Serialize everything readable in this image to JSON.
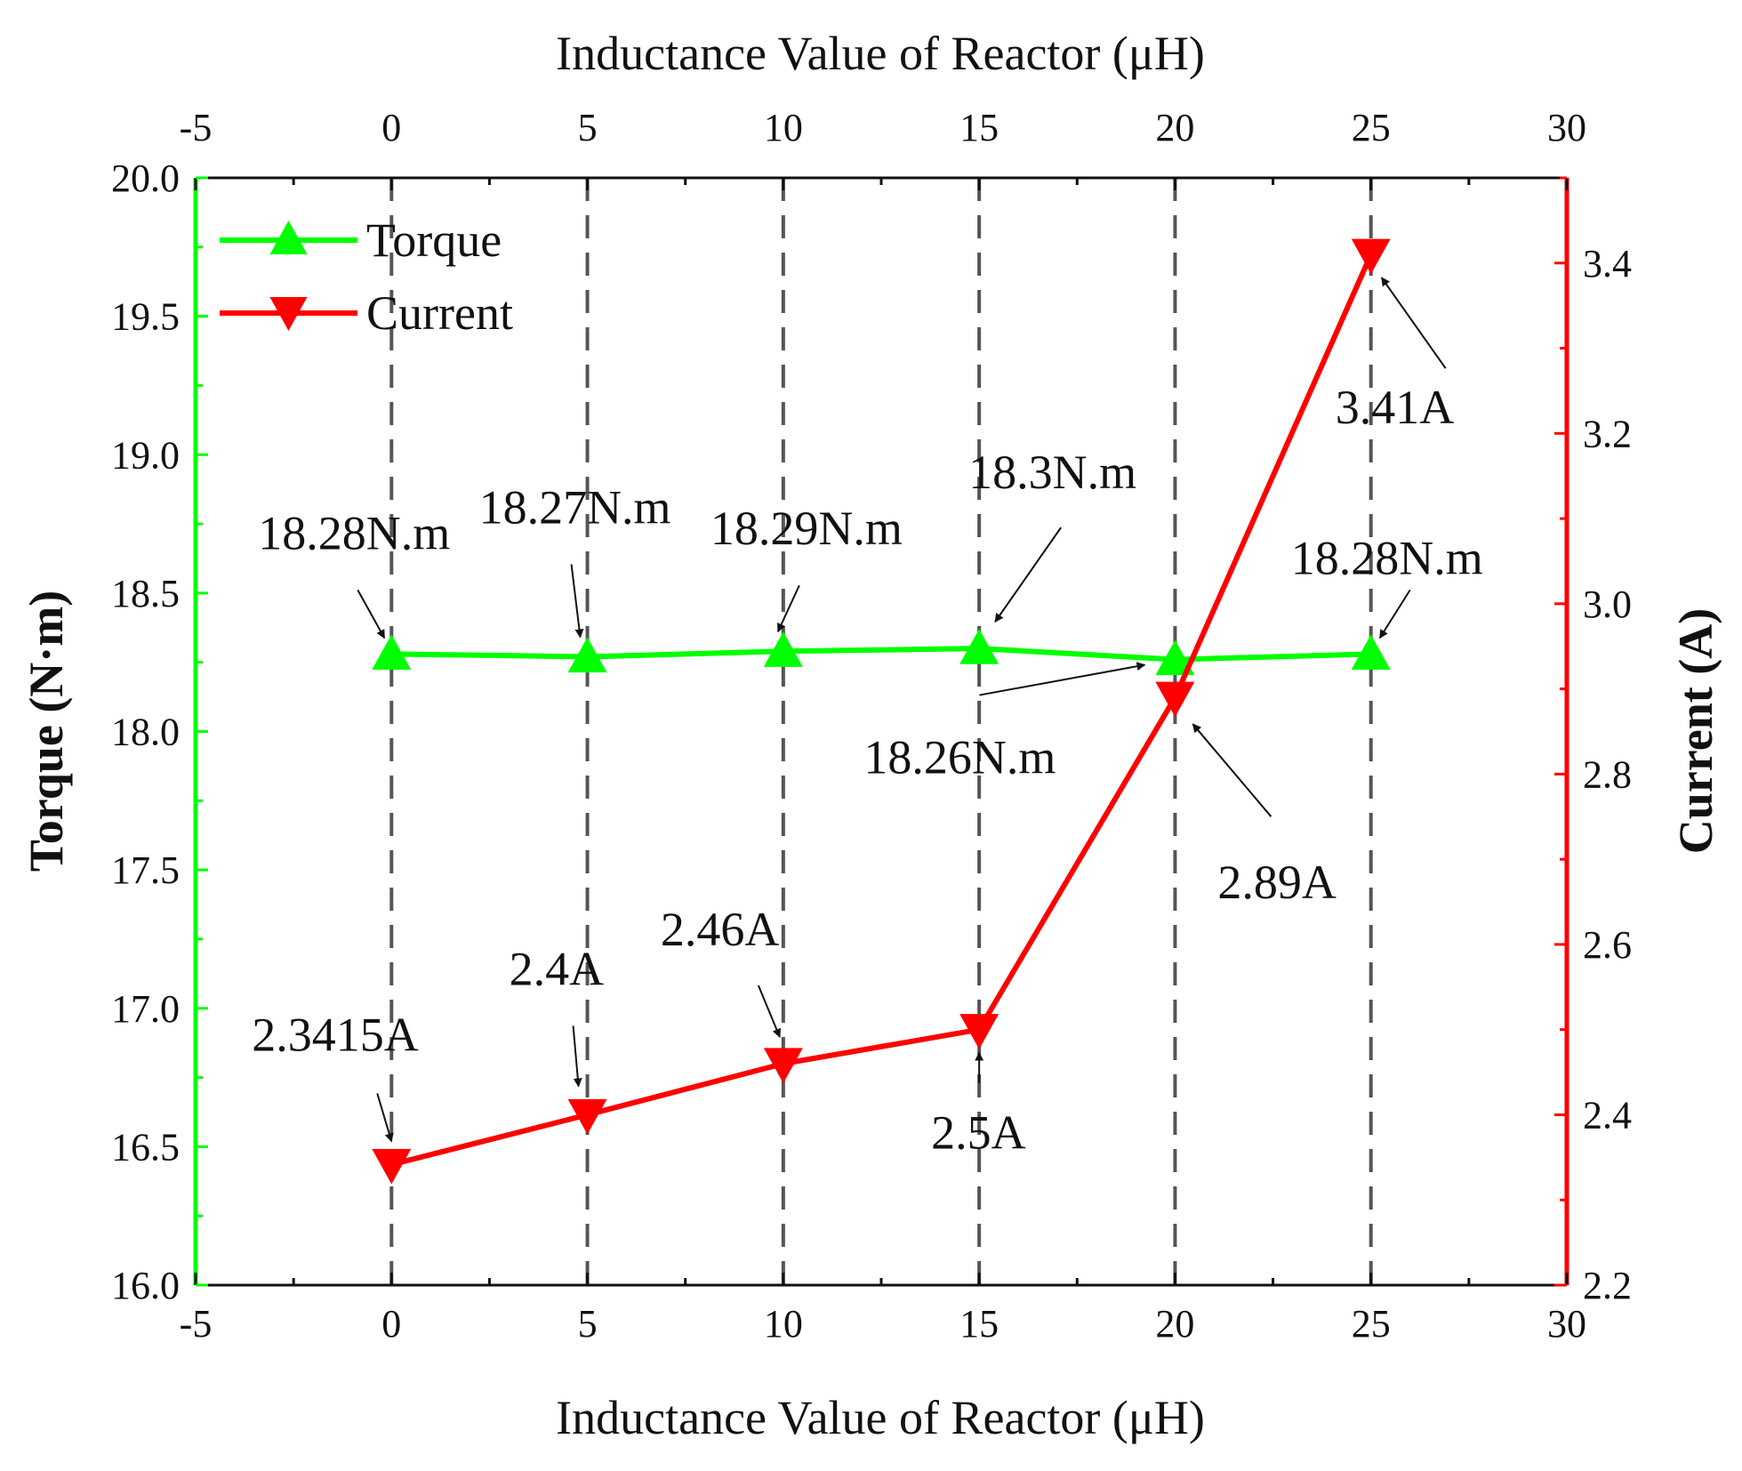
{
  "chart_data": {
    "type": "line",
    "title": "",
    "xlabel_bottom": "Inductance Value of Reactor (μH)",
    "xlabel_top": "Inductance Value of Reactor (μH)",
    "ylabel_left": "Torque (N·m)",
    "ylabel_right": "Current (A)",
    "xlim": [
      -5,
      30
    ],
    "ylim_left": [
      16.0,
      20.0
    ],
    "ylim_right": [
      2.2,
      3.5
    ],
    "x_ticks": [
      "-5",
      "0",
      "5",
      "10",
      "15",
      "20",
      "25",
      "30"
    ],
    "x_tick_values": [
      -5,
      0,
      5,
      10,
      15,
      20,
      25,
      30
    ],
    "y_left_ticks": [
      "16.0",
      "16.5",
      "17.0",
      "17.5",
      "18.0",
      "18.5",
      "19.0",
      "19.5",
      "20.0"
    ],
    "y_left_tick_values": [
      16.0,
      16.5,
      17.0,
      17.5,
      18.0,
      18.5,
      19.0,
      19.5,
      20.0
    ],
    "y_right_ticks": [
      "2.2",
      "2.4",
      "2.6",
      "2.8",
      "3.0",
      "3.2",
      "3.4"
    ],
    "y_right_tick_values": [
      2.2,
      2.4,
      2.6,
      2.8,
      3.0,
      3.2,
      3.4
    ],
    "vertical_dashed_lines_at": [
      0,
      5,
      10,
      15,
      20,
      25
    ],
    "legend_position": "top-left",
    "x": [
      0,
      5,
      10,
      15,
      20,
      25
    ],
    "series": [
      {
        "name": "Torque",
        "axis": "left",
        "color": "#00ff00",
        "marker": "triangle-up",
        "values": [
          18.28,
          18.27,
          18.29,
          18.3,
          18.26,
          18.28
        ],
        "labels": [
          "18.28N.m",
          "18.27N.m",
          "18.29N.m",
          "18.3N.m",
          "18.26N.m",
          "18.28N.m"
        ]
      },
      {
        "name": "Current",
        "axis": "right",
        "color": "#ff0000",
        "marker": "triangle-down",
        "values": [
          2.3415,
          2.4,
          2.46,
          2.5,
          2.89,
          3.41
        ],
        "labels": [
          "2.3415A",
          "2.4A",
          "2.46A",
          "2.5A",
          "2.89A",
          "3.41A"
        ]
      }
    ]
  }
}
